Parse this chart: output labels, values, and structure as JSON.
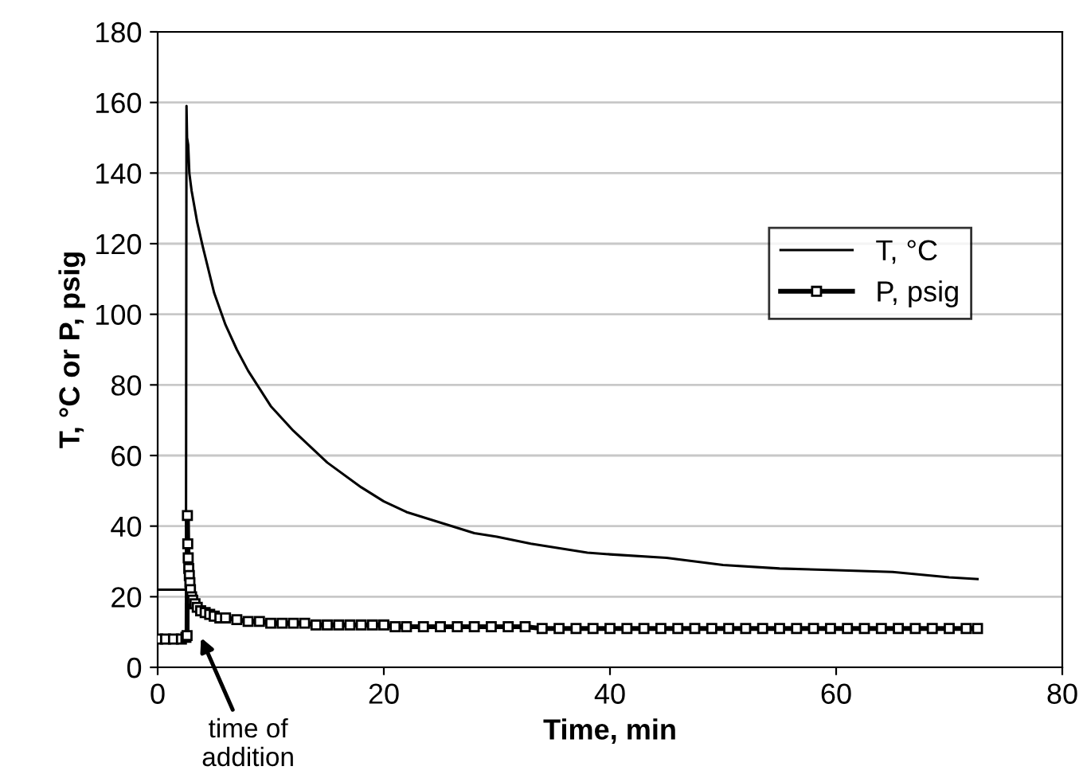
{
  "chart_data": {
    "type": "line",
    "xlabel": "Time, min",
    "ylabel": "T, °C or P, psig",
    "xlim": [
      0,
      80
    ],
    "xticks": [
      0,
      20,
      40,
      60,
      80
    ],
    "ylim": [
      0,
      180
    ],
    "yticks": [
      0,
      20,
      40,
      60,
      80,
      100,
      120,
      140,
      160,
      180
    ],
    "grid": "y",
    "legend": "right",
    "annotations": [
      "time of\naddition"
    ],
    "series": [
      {
        "name": "T, °C",
        "color": "#000000",
        "marker": "none",
        "x": [
          0,
          2.5,
          2.55,
          2.6,
          2.7,
          2.8,
          3,
          3.5,
          4,
          5,
          6,
          7,
          8,
          10,
          12,
          15,
          18,
          20,
          22,
          25,
          28,
          30,
          33,
          35,
          38,
          40,
          45,
          50,
          55,
          60,
          65,
          70,
          72.5
        ],
        "values": [
          22,
          22,
          159,
          150,
          148,
          140,
          135,
          126,
          119,
          106,
          97,
          90,
          84,
          74,
          67,
          58,
          51,
          47,
          44,
          41,
          38,
          37,
          35,
          34,
          32.5,
          32,
          31,
          29,
          28,
          27.5,
          27,
          25.5,
          25
        ]
      },
      {
        "name": "P, psig",
        "color": "#000000",
        "marker": "square",
        "x": [
          0,
          0.7,
          1.4,
          2.1,
          2.5,
          2.6,
          2.63,
          2.66,
          2.7,
          2.75,
          2.8,
          2.85,
          2.9,
          3.0,
          3.1,
          3.3,
          3.5,
          3.8,
          4.2,
          4.6,
          5,
          5.5,
          6,
          7,
          8,
          9,
          10,
          11,
          12,
          13,
          14,
          15,
          16,
          17,
          18,
          19,
          20,
          21,
          22,
          23.5,
          25,
          26.5,
          28,
          29.5,
          31,
          32.5,
          34,
          35.5,
          37,
          38.5,
          40,
          41.5,
          43,
          44.5,
          46,
          47.5,
          49,
          50.5,
          52,
          53.5,
          55,
          56.5,
          58,
          59.5,
          61,
          62.5,
          64,
          65.5,
          67,
          68.5,
          70,
          71.5,
          72.5
        ],
        "values": [
          8,
          8,
          8,
          8,
          8.5,
          9,
          43,
          35,
          31,
          28,
          26,
          24,
          22,
          20,
          19,
          18,
          17,
          16,
          15.5,
          15,
          14.5,
          14,
          14,
          13.5,
          13,
          13,
          12.5,
          12.5,
          12.5,
          12.5,
          12,
          12,
          12,
          12,
          12,
          12,
          12,
          11.5,
          11.5,
          11.5,
          11.5,
          11.5,
          11.5,
          11.5,
          11.5,
          11.5,
          11,
          11,
          11,
          11,
          11,
          11,
          11,
          11,
          11,
          11,
          11,
          11,
          11,
          11,
          11,
          11,
          11,
          11,
          11,
          11,
          11,
          11,
          11,
          11,
          11,
          11,
          11
        ]
      }
    ]
  }
}
